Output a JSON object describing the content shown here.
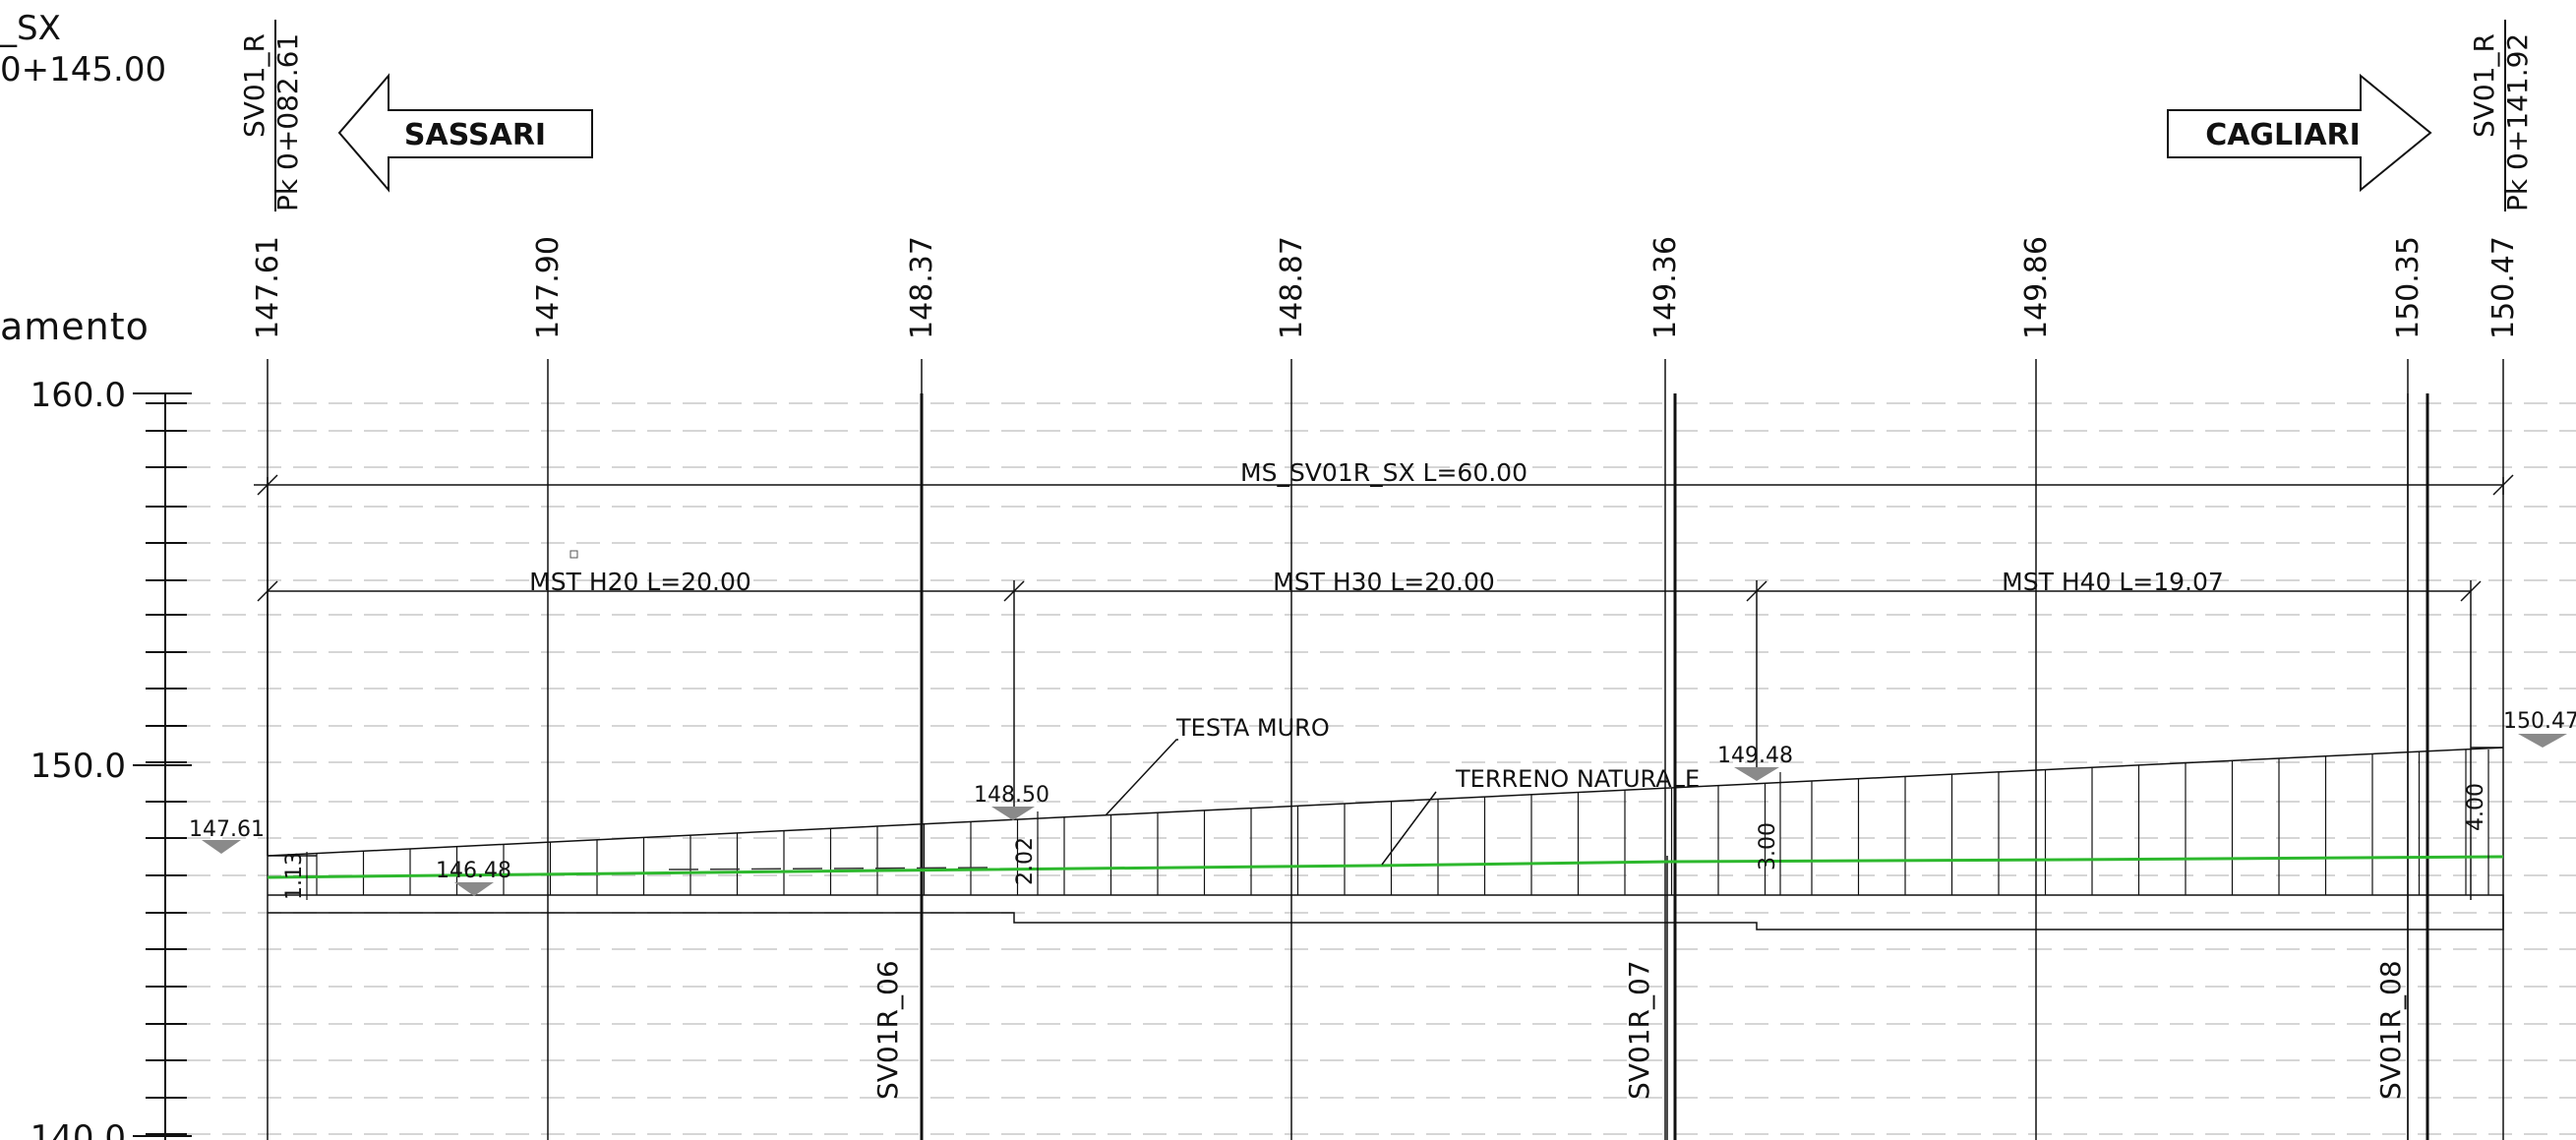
{
  "title_fragment": {
    "line1": "_SX",
    "line2": "0+145.00"
  },
  "axis": {
    "label": "amento",
    "ticks": [
      "160.0",
      "150.0",
      "140.0"
    ]
  },
  "sections": {
    "start": {
      "name": "SV01_R",
      "pk": "Pk  0+082.61"
    },
    "end": {
      "name": "SV01_R",
      "pk": "Pk  0+141.92"
    }
  },
  "direction_arrows": {
    "left": "SASSARI",
    "right": "CAGLIARI"
  },
  "column_elevations": [
    "147.61",
    "147.90",
    "148.37",
    "148.87",
    "149.36",
    "149.86",
    "150.35",
    "150.47"
  ],
  "dimension_lines": {
    "total": "MS_SV01R_SX  L=60.00",
    "segments": [
      "MST  H20  L=20.00",
      "MST  H30  L=20.00",
      "MST  H40  L=19.07"
    ]
  },
  "callouts": {
    "wall_top": "TESTA  MURO",
    "natural_ground": "TERRENO  NATURALE"
  },
  "elevation_markers": [
    "147.61",
    "146.48",
    "148.50",
    "149.48",
    "150.47"
  ],
  "wall_heights": [
    "1.13",
    "2.02",
    "3.00",
    "4.00"
  ],
  "station_labels": [
    "SV01R_06",
    "SV01R_07",
    "SV01R_08"
  ],
  "colors": {
    "ground_line": "#2db82d",
    "marker_fill": "#8a8a8a",
    "grid_dash": "#c8c8c8",
    "ink": "#111111"
  }
}
